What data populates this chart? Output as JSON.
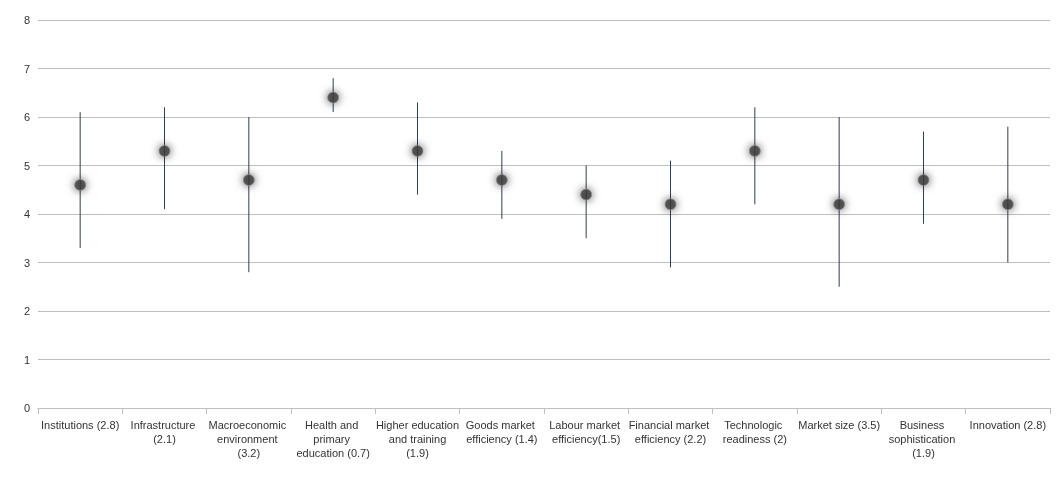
{
  "chart_data": {
    "type": "scatter",
    "categories": [
      "Institutions (2.8)",
      "Infrastructure (2.1)",
      "Macroeconomic environment (3.2)",
      "Health and primary education (0.7)",
      "Higher education and training (1.9)",
      "Goods market efficiency (1.4)",
      "Labour market efficiency(1.5)",
      "Financial market efficiency (2.2)",
      "Technologic readiness (2)",
      "Market size (3.5)",
      "Business sophistication (1.9)",
      "Innovation (2.8)"
    ],
    "values": [
      4.6,
      5.3,
      4.7,
      6.4,
      5.3,
      4.7,
      4.4,
      4.2,
      5.3,
      4.2,
      4.7,
      4.2
    ],
    "errors": [
      [
        3.3,
        6.1
      ],
      [
        4.1,
        6.2
      ],
      [
        2.8,
        6.0
      ],
      [
        6.1,
        6.8
      ],
      [
        4.4,
        6.3
      ],
      [
        3.9,
        5.3
      ],
      [
        3.5,
        5.0
      ],
      [
        2.9,
        5.1
      ],
      [
        4.2,
        6.2
      ],
      [
        2.5,
        6.0
      ],
      [
        3.8,
        5.7
      ],
      [
        3.0,
        5.8
      ]
    ],
    "color": "#3a3a3a",
    "marker": "circle",
    "ylim": [
      0,
      8
    ],
    "yticks": [
      0,
      1,
      2,
      3,
      4,
      5,
      6,
      7,
      8
    ],
    "grid": "y"
  }
}
